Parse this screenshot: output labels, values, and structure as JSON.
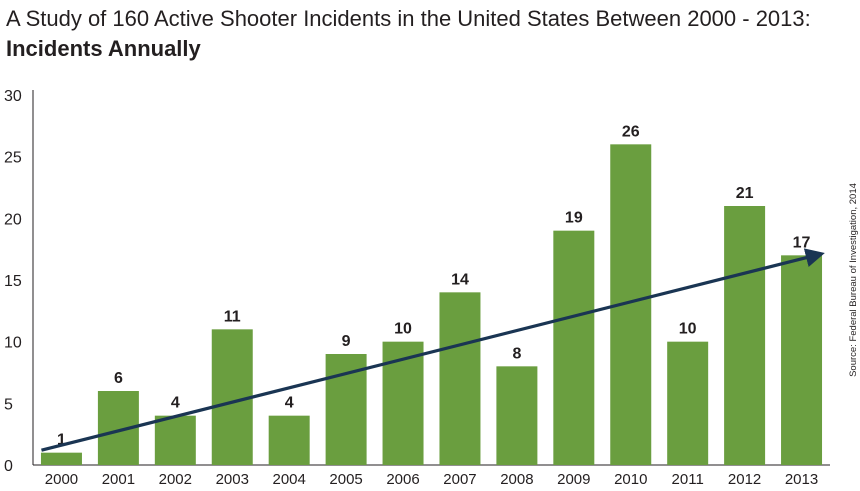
{
  "header": {
    "title_line1": "A Study of 160 Active Shooter Incidents in the United States Between 2000 - 2013:",
    "title_line2": "Incidents Annually"
  },
  "source_note": "Source: Federal Bureau of Investigation, 2014",
  "colors": {
    "bar": "#6a9e3f",
    "trend": "#1a3553",
    "axis": "#231f20"
  },
  "chart_data": {
    "type": "bar",
    "title": "A Study of 160 Active Shooter Incidents in the United States Between 2000 - 2013: Incidents Annually",
    "categories": [
      "2000",
      "2001",
      "2002",
      "2003",
      "2004",
      "2005",
      "2006",
      "2007",
      "2008",
      "2009",
      "2010",
      "2011",
      "2012",
      "2013"
    ],
    "values": [
      1,
      6,
      4,
      11,
      4,
      9,
      10,
      14,
      8,
      19,
      26,
      10,
      21,
      17
    ],
    "value_labels": [
      "1",
      "6",
      "4",
      "11",
      "4",
      "9",
      "10",
      "14",
      "8",
      "19",
      "26",
      "10",
      "21",
      "17"
    ],
    "ylim": [
      0,
      30
    ],
    "yticks": [
      "0",
      "5",
      "10",
      "15",
      "20",
      "25",
      "30"
    ],
    "xlabel": "",
    "ylabel": "",
    "trend_line": {
      "from": [
        "2000",
        1.2
      ],
      "to": [
        "2013",
        17.0
      ],
      "arrow": true
    }
  }
}
